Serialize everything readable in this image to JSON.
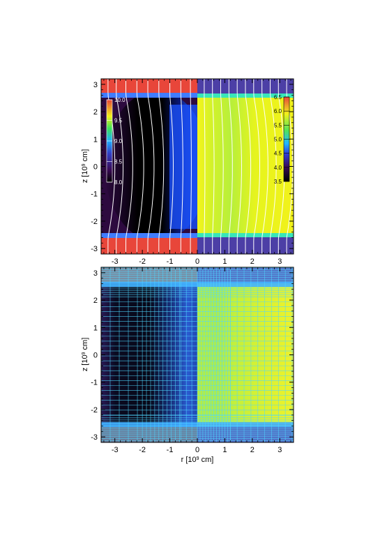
{
  "chart_data": [
    {
      "type": "heatmap",
      "panel": "top",
      "xlim": [
        -3.5,
        3.5
      ],
      "ylim": [
        -3.2,
        3.2
      ],
      "xticks": [
        -3,
        -2,
        -1,
        0,
        1,
        2,
        3
      ],
      "yticks": [
        -3,
        -2,
        -1,
        0,
        1,
        2,
        3
      ],
      "xlabel": "",
      "ylabel": "z [10^9 cm]",
      "ylabel_base": "z [10",
      "ylabel_exp": "9",
      "ylabel_tail": " cm]",
      "halves": [
        {
          "side": "left",
          "colorbar_ticks": [
            8.0,
            8.5,
            9.0,
            9.5,
            10.0
          ],
          "colorbar_labels": [
            "8.0",
            "8.5",
            "9.0",
            "9.5",
            "10.0"
          ]
        },
        {
          "side": "right",
          "colorbar_ticks": [
            3.5,
            4.0,
            4.5,
            5.0,
            5.5,
            6.0,
            6.5
          ],
          "colorbar_labels": [
            "3.5",
            "4.0",
            "4.5",
            "5.0",
            "5.5",
            "6.0",
            "6.5"
          ]
        }
      ],
      "slab_boundary_z": [
        -2.55,
        2.55
      ],
      "overlay": "white field lines"
    },
    {
      "type": "heatmap",
      "panel": "bottom",
      "xlim": [
        -3.5,
        3.5
      ],
      "ylim": [
        -3.2,
        3.2
      ],
      "xticks": [
        -3,
        -2,
        -1,
        0,
        1,
        2,
        3
      ],
      "yticks": [
        -3,
        -2,
        -1,
        0,
        1,
        2,
        3
      ],
      "xlabel": "r [10^9 cm]",
      "xlabel_base": "r [10",
      "xlabel_exp": "9",
      "xlabel_tail": " cm]",
      "ylabel": "z [10^9 cm]",
      "ylabel_base": "z [10",
      "ylabel_exp": "9",
      "ylabel_tail": " cm]",
      "overlay": "cyan computational grid"
    }
  ],
  "colors": {
    "left_background": "#2d0a3f",
    "left_core": "#000000",
    "left_slab": "#e8463a",
    "left_boundary": "#3f7cff",
    "right_core": "#f2f21a",
    "right_mid": "#b9ef3b",
    "right_boundary": "#39e6b8",
    "right_slab": "#4c3fa6",
    "fieldline": "#ffffff",
    "grid": "#4fd8ff"
  }
}
